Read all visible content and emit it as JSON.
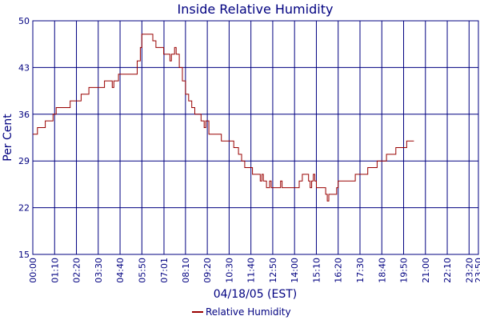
{
  "chart_data": {
    "type": "line",
    "title": "Inside Relative Humidity",
    "xlabel": "04/18/05 (EST)",
    "ylabel": "Per Cent",
    "ylim": [
      15,
      50
    ],
    "yticks": [
      "15",
      "22",
      "29",
      "36",
      "43",
      "50"
    ],
    "xticks": [
      "00:00",
      "01:10",
      "02:20",
      "03:30",
      "04:40",
      "05:50",
      "07:01",
      "08:10",
      "09:20",
      "10:30",
      "11:40",
      "12:50",
      "14:00",
      "15:10",
      "16:20",
      "17:30",
      "18:40",
      "19:50",
      "21:00",
      "22:10",
      "23:20",
      "23:50"
    ],
    "grid": true,
    "legend_position": "bottom-center",
    "series": [
      {
        "name": "Relative Humidity",
        "color": "#990000",
        "points": [
          [
            "00:00",
            33
          ],
          [
            "00:10",
            33
          ],
          [
            "00:15",
            34
          ],
          [
            "00:30",
            34
          ],
          [
            "00:40",
            35
          ],
          [
            "01:00",
            35
          ],
          [
            "01:05",
            36
          ],
          [
            "01:15",
            37
          ],
          [
            "01:50",
            37
          ],
          [
            "02:00",
            38
          ],
          [
            "02:25",
            38
          ],
          [
            "02:35",
            39
          ],
          [
            "02:55",
            39
          ],
          [
            "03:00",
            40
          ],
          [
            "03:45",
            40
          ],
          [
            "03:50",
            41
          ],
          [
            "04:10",
            41
          ],
          [
            "04:15",
            40
          ],
          [
            "04:20",
            41
          ],
          [
            "04:30",
            41
          ],
          [
            "04:35",
            42
          ],
          [
            "05:25",
            42
          ],
          [
            "05:35",
            44
          ],
          [
            "05:45",
            46
          ],
          [
            "05:50",
            48
          ],
          [
            "06:15",
            48
          ],
          [
            "06:25",
            47
          ],
          [
            "06:35",
            46
          ],
          [
            "06:55",
            46
          ],
          [
            "07:00",
            45
          ],
          [
            "07:15",
            45
          ],
          [
            "07:20",
            44
          ],
          [
            "07:25",
            45
          ],
          [
            "07:35",
            46
          ],
          [
            "07:40",
            45
          ],
          [
            "07:50",
            43
          ],
          [
            "08:00",
            41
          ],
          [
            "08:10",
            39
          ],
          [
            "08:20",
            38
          ],
          [
            "08:30",
            37
          ],
          [
            "08:40",
            36
          ],
          [
            "08:55",
            36
          ],
          [
            "09:00",
            35
          ],
          [
            "09:10",
            34
          ],
          [
            "09:15",
            35
          ],
          [
            "09:25",
            33
          ],
          [
            "10:00",
            33
          ],
          [
            "10:05",
            32
          ],
          [
            "10:40",
            32
          ],
          [
            "10:45",
            31
          ],
          [
            "10:55",
            31
          ],
          [
            "11:00",
            30
          ],
          [
            "11:10",
            29
          ],
          [
            "11:20",
            28
          ],
          [
            "11:40",
            28
          ],
          [
            "11:45",
            27
          ],
          [
            "12:05",
            27
          ],
          [
            "12:10",
            26
          ],
          [
            "12:15",
            27
          ],
          [
            "12:20",
            26
          ],
          [
            "12:30",
            25
          ],
          [
            "12:40",
            26
          ],
          [
            "12:45",
            25
          ],
          [
            "13:10",
            25
          ],
          [
            "13:15",
            26
          ],
          [
            "13:20",
            25
          ],
          [
            "14:10",
            25
          ],
          [
            "14:15",
            26
          ],
          [
            "14:25",
            27
          ],
          [
            "14:40",
            27
          ],
          [
            "14:45",
            26
          ],
          [
            "14:50",
            25
          ],
          [
            "14:55",
            26
          ],
          [
            "15:00",
            27
          ],
          [
            "15:05",
            26
          ],
          [
            "15:10",
            25
          ],
          [
            "15:35",
            25
          ],
          [
            "15:40",
            24
          ],
          [
            "15:45",
            23
          ],
          [
            "15:50",
            24
          ],
          [
            "16:10",
            24
          ],
          [
            "16:15",
            25
          ],
          [
            "16:20",
            26
          ],
          [
            "16:40",
            26
          ],
          [
            "16:50",
            26
          ],
          [
            "17:10",
            26
          ],
          [
            "17:15",
            27
          ],
          [
            "17:50",
            27
          ],
          [
            "17:55",
            28
          ],
          [
            "18:20",
            28
          ],
          [
            "18:25",
            29
          ],
          [
            "18:50",
            29
          ],
          [
            "18:55",
            30
          ],
          [
            "19:20",
            30
          ],
          [
            "19:25",
            31
          ],
          [
            "19:55",
            31
          ],
          [
            "20:00",
            32
          ],
          [
            "20:20",
            32
          ],
          [
            "20:23",
            32
          ]
        ]
      }
    ]
  }
}
